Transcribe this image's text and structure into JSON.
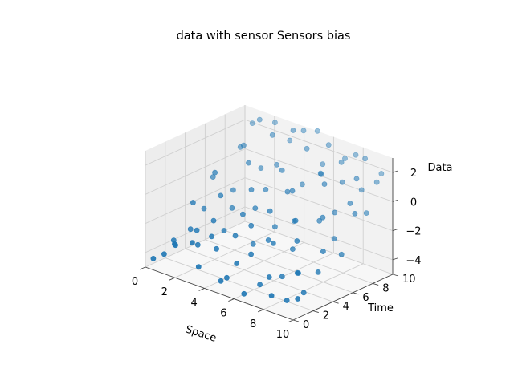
{
  "chart_data": {
    "type": "scatter3d",
    "title": "data with sensor Sensors bias",
    "xlabel": "Space",
    "ylabel": "Time",
    "zlabel": "Data",
    "xlim": [
      0,
      10
    ],
    "ylim": [
      0,
      10
    ],
    "zlim": [
      -5,
      3
    ],
    "xticks": [
      "0",
      "2",
      "4",
      "6",
      "8",
      "10"
    ],
    "yticks": [
      "0",
      "2",
      "4",
      "6",
      "8",
      "10"
    ],
    "zticks": [
      "−4",
      "−2",
      "0",
      "2"
    ],
    "grid": true,
    "color": "#1f77b4",
    "points": [
      [
        0.2,
        0.5,
        -4.5
      ],
      [
        0.6,
        1.0,
        -4.2
      ],
      [
        0.9,
        1.6,
        -3.6
      ],
      [
        1.5,
        0.8,
        -3.2
      ],
      [
        1.8,
        2.5,
        -2.6
      ],
      [
        2.3,
        1.3,
        -2.9
      ],
      [
        2.6,
        3.0,
        -1.8
      ],
      [
        3.0,
        2.2,
        -2.5
      ],
      [
        3.2,
        0.6,
        -4.0
      ],
      [
        3.6,
        1.8,
        -3.0
      ],
      [
        3.9,
        4.0,
        -1.2
      ],
      [
        4.2,
        2.8,
        -2.2
      ],
      [
        4.5,
        0.9,
        -4.6
      ],
      [
        4.8,
        3.5,
        -1.5
      ],
      [
        5.1,
        1.6,
        -3.4
      ],
      [
        5.4,
        4.5,
        -0.6
      ],
      [
        5.6,
        2.3,
        -2.8
      ],
      [
        5.9,
        6.0,
        0.5
      ],
      [
        6.2,
        0.7,
        -4.8
      ],
      [
        6.5,
        3.2,
        -2.0
      ],
      [
        6.8,
        5.0,
        -0.9
      ],
      [
        7.1,
        1.9,
        -3.7
      ],
      [
        7.4,
        7.0,
        1.2
      ],
      [
        7.7,
        3.8,
        -1.6
      ],
      [
        8.0,
        0.8,
        -4.3
      ],
      [
        8.3,
        5.5,
        -0.3
      ],
      [
        8.6,
        2.6,
        -3.1
      ],
      [
        8.9,
        8.0,
        1.8
      ],
      [
        9.2,
        4.2,
        -1.9
      ],
      [
        9.5,
        1.2,
        -4.1
      ],
      [
        9.8,
        6.5,
        0.2
      ],
      [
        0.8,
        3.6,
        -1.4
      ],
      [
        1.2,
        5.2,
        0.3
      ],
      [
        1.6,
        7.5,
        1.6
      ],
      [
        2.0,
        4.6,
        -0.8
      ],
      [
        2.4,
        6.8,
        0.9
      ],
      [
        2.8,
        8.6,
        2.4
      ],
      [
        3.4,
        5.6,
        -0.2
      ],
      [
        3.8,
        9.2,
        2.9
      ],
      [
        4.4,
        7.2,
        1.0
      ],
      [
        5.0,
        8.8,
        2.2
      ],
      [
        5.3,
        6.4,
        0.1
      ],
      [
        6.0,
        9.5,
        2.6
      ],
      [
        6.6,
        7.8,
        1.4
      ],
      [
        7.2,
        9.0,
        2.0
      ],
      [
        7.8,
        8.2,
        1.1
      ],
      [
        8.4,
        9.6,
        2.5
      ],
      [
        9.0,
        7.2,
        0.4
      ],
      [
        9.6,
        9.0,
        1.5
      ],
      [
        0.4,
        6.2,
        -0.6
      ],
      [
        0.9,
        8.2,
        1.0
      ],
      [
        1.4,
        9.4,
        2.7
      ],
      [
        2.2,
        2.0,
        -3.3
      ],
      [
        3.1,
        3.3,
        -2.4
      ],
      [
        4.0,
        5.1,
        -1.1
      ],
      [
        4.7,
        1.2,
        -4.4
      ],
      [
        5.7,
        3.9,
        -2.3
      ],
      [
        6.3,
        5.6,
        -1.3
      ],
      [
        7.0,
        4.4,
        -2.6
      ],
      [
        7.6,
        6.2,
        -1.0
      ],
      [
        8.2,
        3.1,
        -3.4
      ],
      [
        8.8,
        5.9,
        -1.7
      ],
      [
        9.4,
        3.4,
        -3.0
      ],
      [
        9.9,
        5.0,
        -2.1
      ],
      [
        1.0,
        4.4,
        -2.0
      ],
      [
        1.9,
        6.0,
        -0.9
      ],
      [
        2.7,
        7.6,
        0.4
      ],
      [
        3.5,
        8.0,
        0.8
      ],
      [
        4.1,
        9.8,
        2.8
      ],
      [
        4.9,
        10.0,
        3.0
      ],
      [
        5.5,
        7.6,
        0.3
      ],
      [
        6.1,
        8.6,
        0.9
      ],
      [
        6.9,
        9.8,
        1.9
      ],
      [
        7.5,
        10.0,
        2.3
      ],
      [
        8.1,
        7.0,
        -0.5
      ],
      [
        8.7,
        8.8,
        0.7
      ],
      [
        9.3,
        9.9,
        1.7
      ],
      [
        9.7,
        7.8,
        -0.2
      ],
      [
        0.3,
        2.4,
        -3.8
      ],
      [
        1.1,
        2.9,
        -2.9
      ],
      [
        2.5,
        5.0,
        -1.6
      ],
      [
        3.7,
        6.6,
        -0.4
      ],
      [
        4.6,
        4.0,
        -3.0
      ],
      [
        5.2,
        5.3,
        -2.0
      ],
      [
        6.4,
        2.0,
        -4.5
      ],
      [
        7.3,
        2.9,
        -3.9
      ],
      [
        8.5,
        1.6,
        -4.7
      ],
      [
        9.1,
        2.4,
        -4.2
      ],
      [
        0.7,
        9.7,
        2.1
      ],
      [
        2.1,
        9.9,
        2.6
      ],
      [
        3.3,
        9.6,
        1.9
      ],
      [
        5.8,
        9.2,
        1.3
      ]
    ]
  }
}
